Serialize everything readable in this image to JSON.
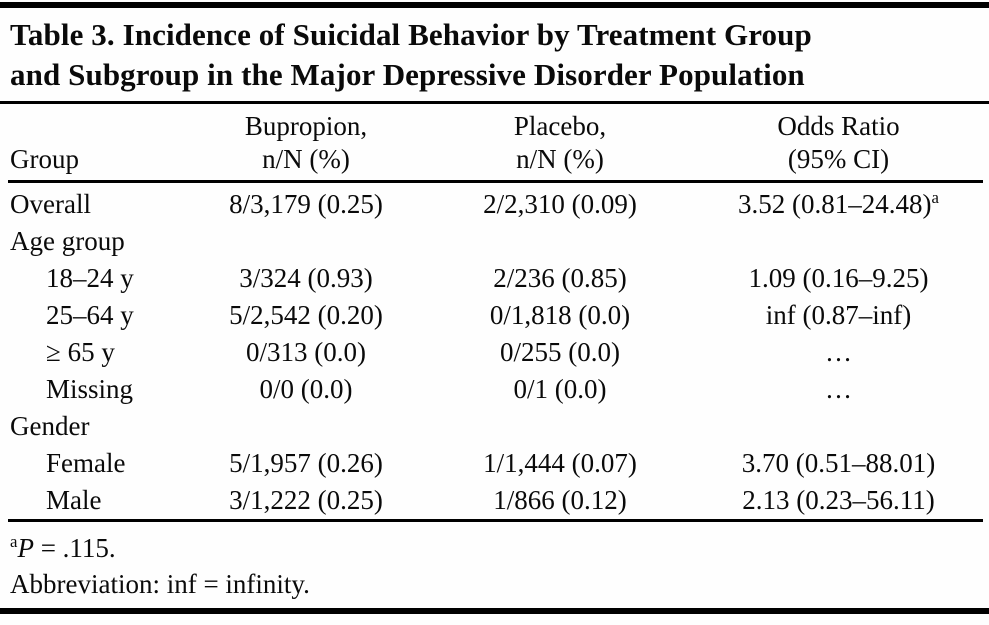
{
  "title": {
    "line1": "Table 3. Incidence of Suicidal Behavior by Treatment Group",
    "line2": "and Subgroup in the Major Depressive Disorder Population"
  },
  "table": {
    "columns": [
      "Group",
      "Bupropion,\nn/N (%)",
      "Placebo,\nn/N (%)",
      "Odds Ratio\n(95% CI)"
    ],
    "rows": [
      {
        "group": "Overall",
        "indent": false,
        "bupropion": "8/3,179 (0.25)",
        "placebo": "2/2,310 (0.09)",
        "odds_ratio": "3.52 (0.81–24.48)",
        "or_sup": "a"
      },
      {
        "group": "Age group",
        "indent": false,
        "bupropion": "",
        "placebo": "",
        "odds_ratio": ""
      },
      {
        "group": "18–24 y",
        "indent": true,
        "bupropion": "3/324 (0.93)",
        "placebo": "2/236 (0.85)",
        "odds_ratio": "1.09 (0.16–9.25)"
      },
      {
        "group": "25–64 y",
        "indent": true,
        "bupropion": "5/2,542 (0.20)",
        "placebo": "0/1,818 (0.0)",
        "odds_ratio": "inf (0.87–inf)"
      },
      {
        "group": "≥ 65 y",
        "indent": true,
        "bupropion": "0/313 (0.0)",
        "placebo": "0/255 (0.0)",
        "odds_ratio": "…"
      },
      {
        "group": "Missing",
        "indent": true,
        "bupropion": "0/0 (0.0)",
        "placebo": "0/1 (0.0)",
        "odds_ratio": "…"
      },
      {
        "group": "Gender",
        "indent": false,
        "bupropion": "",
        "placebo": "",
        "odds_ratio": ""
      },
      {
        "group": "Female",
        "indent": true,
        "bupropion": "5/1,957 (0.26)",
        "placebo": "1/1,444 (0.07)",
        "odds_ratio": "3.70 (0.51–88.01)"
      },
      {
        "group": "Male",
        "indent": true,
        "bupropion": "3/1,222 (0.25)",
        "placebo": "1/866 (0.12)",
        "odds_ratio": "2.13 (0.23–56.11)"
      }
    ]
  },
  "footnotes": {
    "a_marker": "a",
    "a_var": "P",
    "a_text": " = .115.",
    "abbreviation": "Abbreviation: inf = infinity."
  },
  "colors": {
    "text": "#0a0a0a",
    "background": "#fefefe",
    "rule": "#000000"
  }
}
